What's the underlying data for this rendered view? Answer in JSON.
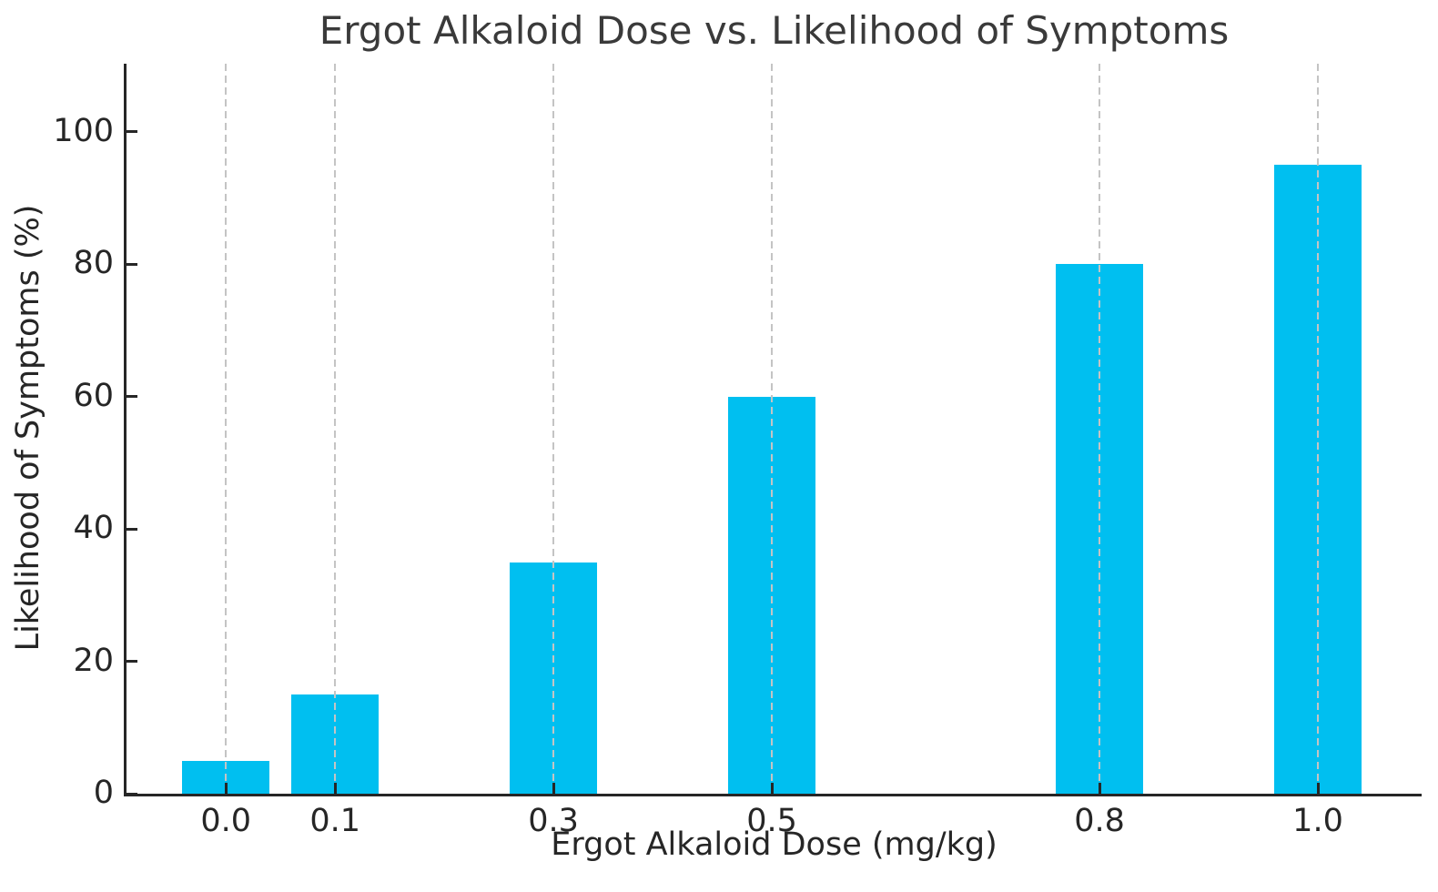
{
  "chart_data": {
    "type": "bar",
    "title": "Ergot Alkaloid Dose vs. Likelihood of Symptoms",
    "xlabel": "Ergot Alkaloid Dose (mg/kg)",
    "ylabel": "Likelihood of Symptoms (%)",
    "categories": [
      "0.0",
      "0.1",
      "0.3",
      "0.5",
      "0.8",
      "1.0"
    ],
    "x": [
      0.0,
      0.1,
      0.3,
      0.5,
      0.8,
      1.0
    ],
    "values": [
      5,
      15,
      35,
      60,
      80,
      95
    ],
    "bar_width_units": 0.08,
    "xlim": [
      -0.091,
      1.095
    ],
    "ylim": [
      0,
      110.3
    ],
    "yticks": [
      0,
      20,
      40,
      60,
      80,
      100
    ],
    "grid": {
      "vertical": true,
      "horizontal": false,
      "style": "dashed",
      "on_top_of_bars": true
    },
    "legend": "none",
    "colors": {
      "bar": "#00BFF0",
      "grid": "#C4C4C4",
      "axis": "#262626",
      "tick_label": "#262626",
      "title": "#3A3A3A",
      "background": "#FFFFFF"
    }
  }
}
